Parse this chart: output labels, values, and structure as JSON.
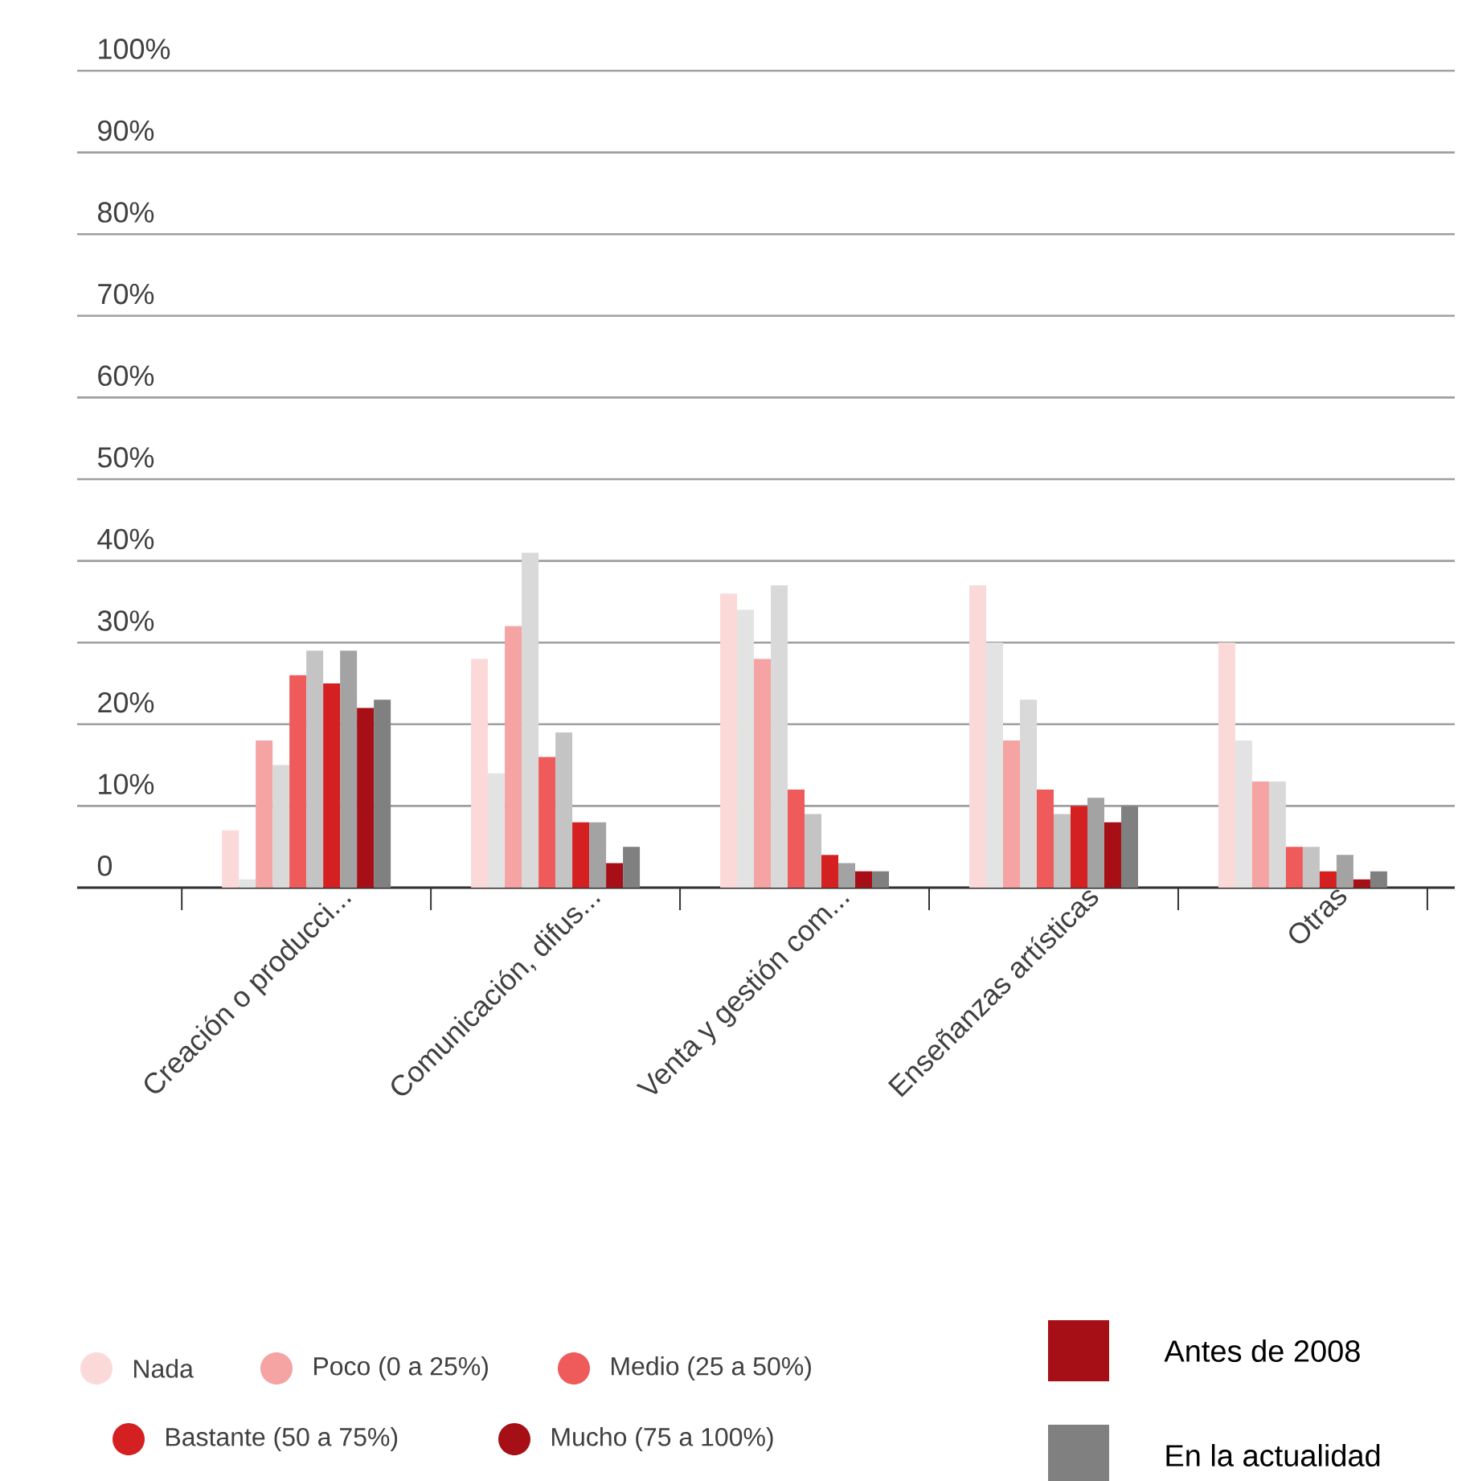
{
  "chart_data": {
    "type": "bar",
    "categories": [
      "Creación o producci...",
      "Comunicación, difus...",
      "Venta y gestión com...",
      "Enseñanzas artísticas",
      "Otras"
    ],
    "series": [
      {
        "name": "Nada",
        "color": "#fcd9d9",
        "values": [
          7,
          28,
          36,
          37,
          30
        ]
      },
      {
        "color": "#e3e3e3",
        "values": [
          1,
          14,
          34,
          30,
          18
        ]
      },
      {
        "name": "Poco (0 a 25%)",
        "color": "#f5a3a3",
        "values": [
          18,
          32,
          28,
          18,
          13
        ]
      },
      {
        "color": "#d9d9d9",
        "values": [
          15,
          41,
          37,
          23,
          13
        ]
      },
      {
        "name": "Medio (25 a 50%)",
        "color": "#ef5a5a",
        "values": [
          26,
          16,
          12,
          12,
          5
        ]
      },
      {
        "color": "#c4c4c4",
        "values": [
          29,
          19,
          9,
          9,
          5
        ]
      },
      {
        "name": "Bastante (50 a 75%)",
        "color": "#d42020",
        "values": [
          25,
          8,
          4,
          10,
          2
        ]
      },
      {
        "color": "#a3a3a3",
        "values": [
          29,
          8,
          3,
          11,
          4
        ]
      },
      {
        "name": "Mucho (75 a 100%)",
        "color": "#a50f15",
        "values": [
          22,
          3,
          2,
          8,
          1
        ]
      },
      {
        "color": "#808080",
        "values": [
          23,
          5,
          2,
          10,
          2
        ]
      }
    ],
    "ylim": [
      0,
      100
    ],
    "yticks": [
      {
        "value": 0,
        "label": "0"
      },
      {
        "value": 10,
        "label": "10%"
      },
      {
        "value": 20,
        "label": "20%"
      },
      {
        "value": 30,
        "label": "30%"
      },
      {
        "value": 40,
        "label": "40%"
      },
      {
        "value": 50,
        "label": "50%"
      },
      {
        "value": 60,
        "label": "60%"
      },
      {
        "value": 70,
        "label": "70%"
      },
      {
        "value": 80,
        "label": "80%"
      },
      {
        "value": 90,
        "label": "90%"
      },
      {
        "value": 100,
        "label": "100%"
      }
    ],
    "grid": "y",
    "legend": "bottom",
    "annotations": [
      "Antes de 2008",
      "En la actualidad"
    ]
  }
}
